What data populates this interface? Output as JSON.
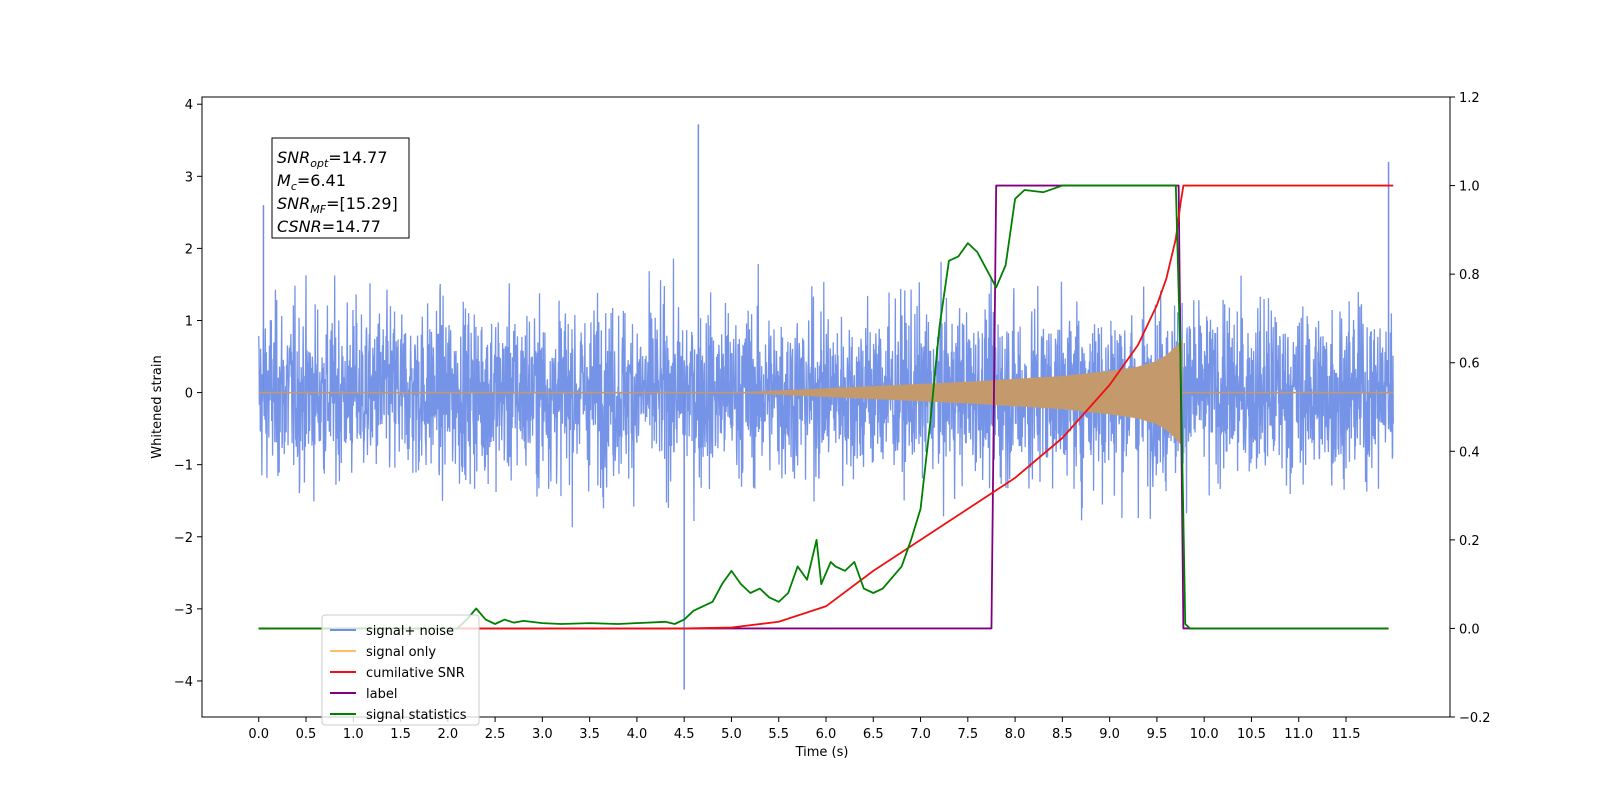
{
  "chart_data": {
    "type": "line",
    "xlabel": "Time (s)",
    "ylabel": "Whitened strain",
    "xlim": [
      -0.6,
      12.6
    ],
    "ylim_left": [
      -4.5,
      4.1
    ],
    "ylim_right": [
      -0.2,
      1.2
    ],
    "x_ticks": [
      0.0,
      0.5,
      1.0,
      1.5,
      2.0,
      2.5,
      3.0,
      3.5,
      4.0,
      4.5,
      5.0,
      5.5,
      6.0,
      6.5,
      7.0,
      7.5,
      8.0,
      8.5,
      9.0,
      9.5,
      10.0,
      10.5,
      11.0,
      11.5
    ],
    "x_tick_labels": [
      "0.0",
      "0.5",
      "1.0",
      "1.5",
      "2.0",
      "2.5",
      "3.0",
      "3.5",
      "4.0",
      "4.5",
      "5.0",
      "5.5",
      "6.0",
      "6.5",
      "7.0",
      "7.5",
      "8.0",
      "8.5",
      "9.0",
      "9.5",
      "10.0",
      "10.5",
      "11.0",
      "11.5"
    ],
    "y_left_ticks": [
      -4,
      -3,
      -2,
      -1,
      0,
      1,
      2,
      3,
      4
    ],
    "y_left_tick_labels": [
      "−4",
      "−3",
      "−2",
      "−1",
      "0",
      "1",
      "2",
      "3",
      "4"
    ],
    "y_right_ticks": [
      -0.2,
      0.0,
      0.2,
      0.4,
      0.6,
      0.8,
      1.0,
      1.2
    ],
    "y_right_tick_labels": [
      "−0.2",
      "0.0",
      "0.2",
      "0.4",
      "0.6",
      "0.8",
      "1.0",
      "1.2"
    ],
    "annotation": {
      "lines": [
        {
          "var": "SNR",
          "sub": "opt",
          "value": "=14.77"
        },
        {
          "var": "M",
          "sub": "c",
          "value": "=6.41"
        },
        {
          "var": "SNR",
          "sub": "MF",
          "value": "=[15.29]"
        },
        {
          "var": "CSNR",
          "sub": "",
          "value": "=14.77"
        }
      ]
    },
    "legend": {
      "placement": "lower-left",
      "entries": [
        {
          "label": "signal+ noise",
          "color": "#6f8ee6"
        },
        {
          "label": "signal only",
          "color": "#ffbf60"
        },
        {
          "label": "cumilative SNR",
          "color": "#ee1111"
        },
        {
          "label": "label",
          "color": "#800080"
        },
        {
          "label": "signal statistics",
          "color": "#008000"
        }
      ]
    },
    "series": [
      {
        "name": "signal+ noise",
        "axis": "left",
        "color": "#6f8ee6",
        "x_range": [
          0.0,
          12.0
        ],
        "typical_envelope": 1.7,
        "notable_peaks": [
          {
            "x": 4.65,
            "y": 3.72
          },
          {
            "x": 4.5,
            "y": -4.12
          },
          {
            "x": 11.95,
            "y": 3.2
          },
          {
            "x": 0.05,
            "y": 2.6
          }
        ]
      },
      {
        "name": "signal only",
        "axis": "left",
        "color": "#c49a6c",
        "envelope": {
          "x": [
            0.0,
            5.0,
            5.5,
            6.0,
            6.5,
            7.0,
            7.5,
            8.0,
            8.5,
            9.0,
            9.3,
            9.5,
            9.6,
            9.7,
            9.75,
            9.77,
            9.78,
            12.0
          ],
          "amplitude": [
            0.0,
            0.0,
            0.03,
            0.06,
            0.09,
            0.12,
            0.15,
            0.19,
            0.23,
            0.3,
            0.36,
            0.44,
            0.52,
            0.64,
            0.72,
            0.74,
            0.0,
            0.0
          ]
        }
      },
      {
        "name": "cumilative SNR",
        "axis": "right",
        "color": "#ee1111",
        "x": [
          0.0,
          4.0,
          4.5,
          5.0,
          5.5,
          6.0,
          6.5,
          7.0,
          7.5,
          8.0,
          8.5,
          9.0,
          9.3,
          9.5,
          9.6,
          9.7,
          9.75,
          9.78,
          12.0
        ],
        "values": [
          0.0,
          0.0,
          0.0,
          0.002,
          0.015,
          0.05,
          0.13,
          0.2,
          0.27,
          0.34,
          0.43,
          0.55,
          0.64,
          0.73,
          0.79,
          0.88,
          0.96,
          1.0,
          1.0
        ]
      },
      {
        "name": "label",
        "axis": "right",
        "color": "#800080",
        "x": [
          0.0,
          7.75,
          7.8,
          9.73,
          9.78,
          11.95
        ],
        "values": [
          0.0,
          0.0,
          1.0,
          1.0,
          0.0,
          0.0
        ]
      },
      {
        "name": "signal statistics",
        "axis": "right",
        "color": "#008000",
        "x": [
          0.0,
          2.1,
          2.2,
          2.3,
          2.4,
          2.5,
          2.6,
          2.7,
          2.8,
          3.0,
          3.2,
          3.5,
          3.8,
          4.0,
          4.3,
          4.4,
          4.5,
          4.6,
          4.8,
          4.9,
          5.0,
          5.1,
          5.2,
          5.3,
          5.4,
          5.5,
          5.6,
          5.7,
          5.8,
          5.9,
          5.95,
          6.05,
          6.1,
          6.2,
          6.3,
          6.4,
          6.5,
          6.6,
          6.8,
          6.9,
          7.0,
          7.1,
          7.2,
          7.3,
          7.4,
          7.5,
          7.6,
          7.75,
          7.8,
          7.9,
          8.0,
          8.1,
          8.3,
          8.5,
          8.7,
          9.0,
          9.5,
          9.7,
          9.75,
          9.8,
          9.85,
          11.95
        ],
        "values": [
          0.0,
          0.0,
          0.02,
          0.045,
          0.02,
          0.01,
          0.02,
          0.013,
          0.017,
          0.012,
          0.01,
          0.012,
          0.01,
          0.012,
          0.015,
          0.01,
          0.02,
          0.04,
          0.06,
          0.1,
          0.13,
          0.1,
          0.08,
          0.09,
          0.07,
          0.06,
          0.08,
          0.14,
          0.11,
          0.2,
          0.1,
          0.15,
          0.14,
          0.13,
          0.15,
          0.09,
          0.08,
          0.09,
          0.14,
          0.2,
          0.27,
          0.46,
          0.68,
          0.83,
          0.84,
          0.87,
          0.85,
          0.79,
          0.77,
          0.82,
          0.97,
          0.99,
          0.985,
          1.0,
          1.0,
          1.0,
          1.0,
          1.0,
          0.6,
          0.01,
          0.0,
          0.0
        ]
      }
    ]
  }
}
